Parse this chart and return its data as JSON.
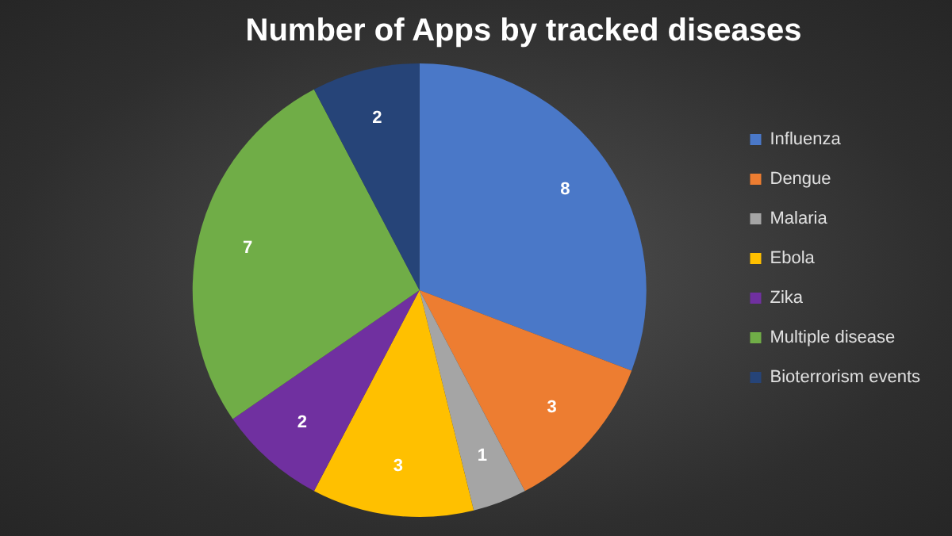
{
  "chart_data": {
    "type": "pie",
    "title": "Number of Apps by tracked diseases",
    "categories": [
      "Influenza",
      "Dengue",
      "Malaria",
      "Ebola",
      "Zika",
      "Multiple disease",
      "Bioterrorism events"
    ],
    "values": [
      8,
      3,
      1,
      3,
      2,
      7,
      2
    ],
    "colors": [
      "#4a78c8",
      "#ed7d31",
      "#a5a5a5",
      "#ffc000",
      "#7030a0",
      "#70ad47",
      "#264478"
    ],
    "data_labels": true,
    "legend": "right"
  }
}
